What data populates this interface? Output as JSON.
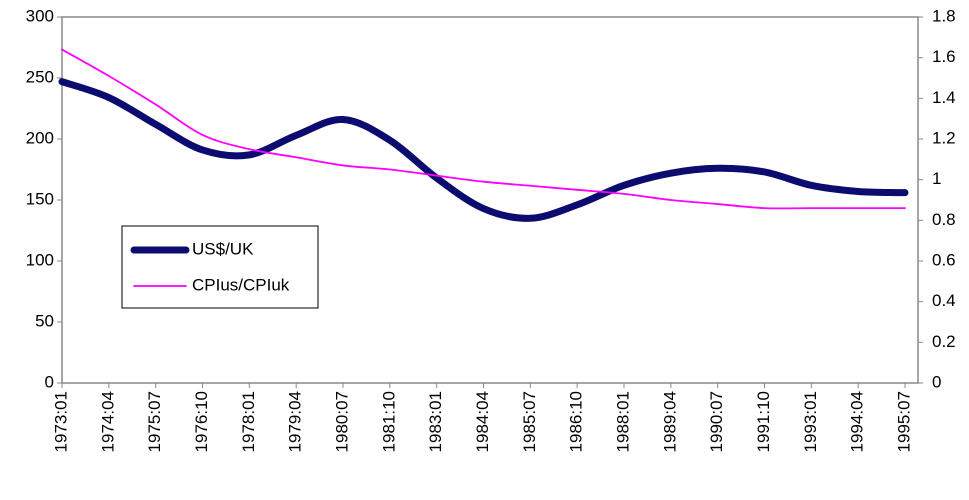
{
  "chart_data": {
    "type": "line",
    "categories": [
      "1973:01",
      "1974:04",
      "1975:07",
      "1976:10",
      "1978:01",
      "1979:04",
      "1980:07",
      "1981:10",
      "1983:01",
      "1984:04",
      "1985:07",
      "1986:10",
      "1988:01",
      "1989:04",
      "1990:07",
      "1991:10",
      "1993:01",
      "1994:04",
      "1995:07"
    ],
    "series": [
      {
        "name": "US$/UK",
        "color": "#0b0b70",
        "axis": "y",
        "values": [
          247,
          234,
          212,
          191,
          187,
          203,
          216,
          199,
          168,
          143,
          135,
          146,
          162,
          172,
          176,
          173,
          162,
          157,
          156
        ]
      },
      {
        "name": "CPIus/CPIuk",
        "color": "#ff00ff",
        "axis": "y2",
        "values": [
          1.64,
          1.51,
          1.37,
          1.22,
          1.15,
          1.11,
          1.07,
          1.05,
          1.02,
          0.99,
          0.97,
          0.95,
          0.93,
          0.9,
          0.88,
          0.86,
          0.86,
          0.86,
          0.86
        ]
      }
    ],
    "ylim": [
      0,
      300
    ],
    "yticks": [
      0,
      50,
      100,
      150,
      200,
      250,
      300
    ],
    "y2lim": [
      0,
      1.8
    ],
    "y2ticks": [
      0,
      0.2,
      0.4,
      0.6,
      0.8,
      1,
      1.2,
      1.4,
      1.6,
      1.8
    ],
    "legend": "left",
    "grid": false
  }
}
